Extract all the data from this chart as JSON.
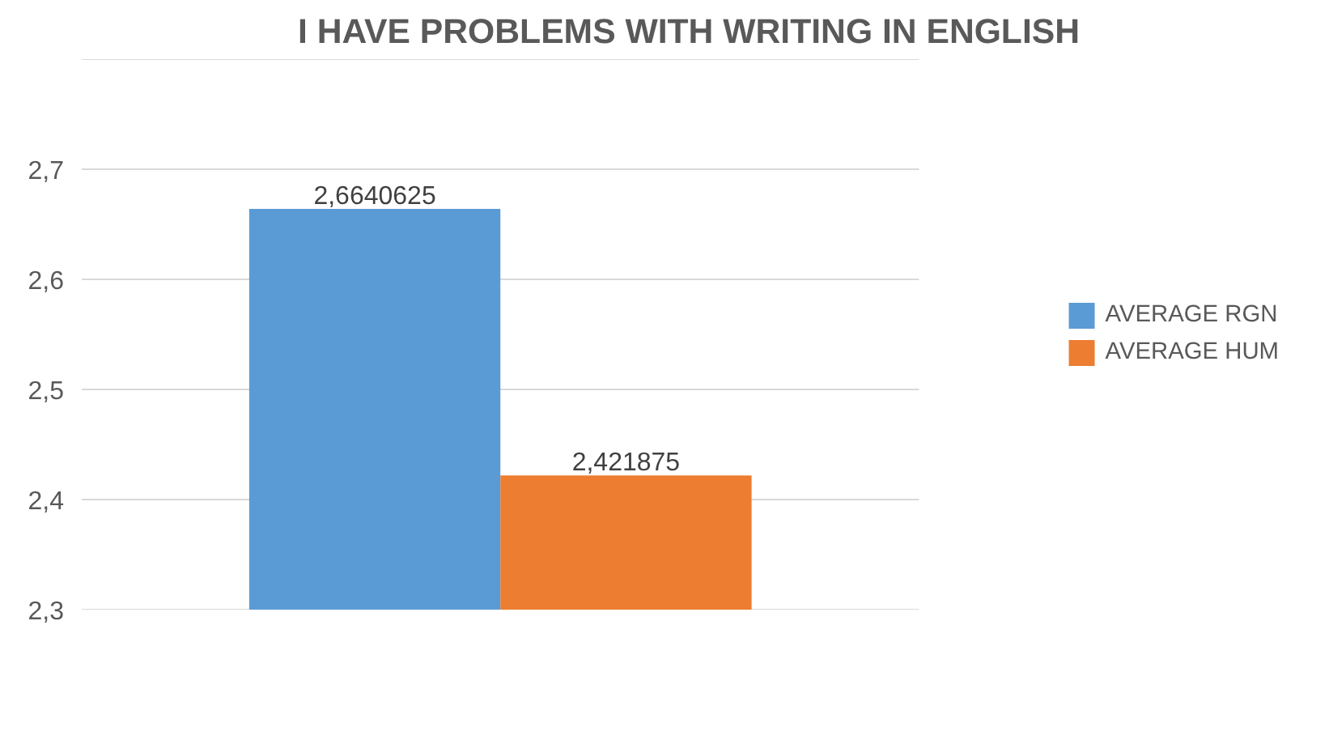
{
  "chart_data": {
    "type": "bar",
    "title": "I HAVE PROBLEMS WITH WRITING IN ENGLISH",
    "categories": [
      null
    ],
    "series": [
      {
        "name": "AVERAGE RGN",
        "color": "#5b9bd5",
        "values": [
          2.6640625
        ],
        "value_labels": [
          "2,6640625"
        ]
      },
      {
        "name": "AVERAGE HUM",
        "color": "#ed7d31",
        "values": [
          2.421875
        ],
        "value_labels": [
          "2,421875"
        ]
      }
    ],
    "ylim": [
      2.3,
      2.8
    ],
    "yticks": [
      {
        "value": 2.3,
        "label": "2,3"
      },
      {
        "value": 2.4,
        "label": "2,4"
      },
      {
        "value": 2.5,
        "label": "2,5"
      },
      {
        "value": 2.6,
        "label": "2,6"
      },
      {
        "value": 2.7,
        "label": "2,7"
      },
      {
        "value": 2.8,
        "label": null
      }
    ],
    "grid": "y",
    "legend": "right"
  }
}
